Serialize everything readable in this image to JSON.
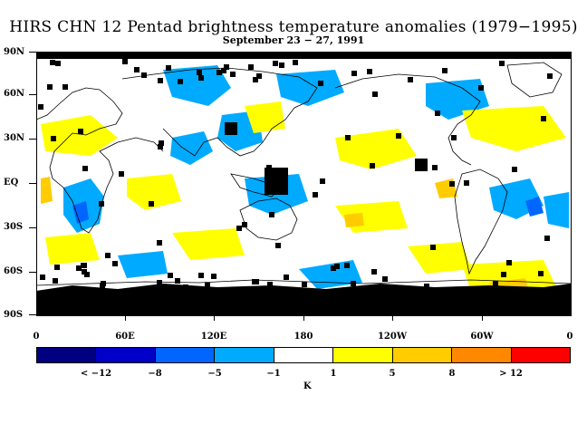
{
  "title": "HIRS CHN 12 Pentad brightness temperature anomalies (1979−1995)",
  "subtitle": "September 23 − 27, 1991",
  "lat_labels": [
    "90N",
    "60N",
    "30N",
    "EQ",
    "30S",
    "60S",
    "90S"
  ],
  "lon_labels": [
    "0",
    "60E",
    "120E",
    "180",
    "120W",
    "60W",
    "0"
  ],
  "legend": {
    "labels": [
      "< −12",
      "−8",
      "−5",
      "−1",
      "1",
      "5",
      "8",
      "> 12"
    ],
    "unit": "K",
    "colors": [
      "#000080",
      "#0000c8",
      "#0066ff",
      "#00aaff",
      "#ffffff",
      "#ffff00",
      "#ffcc00",
      "#ff8800",
      "#ff0000"
    ]
  },
  "colors": {
    "missing": "#000000",
    "coastline": "#000000",
    "background": "#ffffff"
  }
}
